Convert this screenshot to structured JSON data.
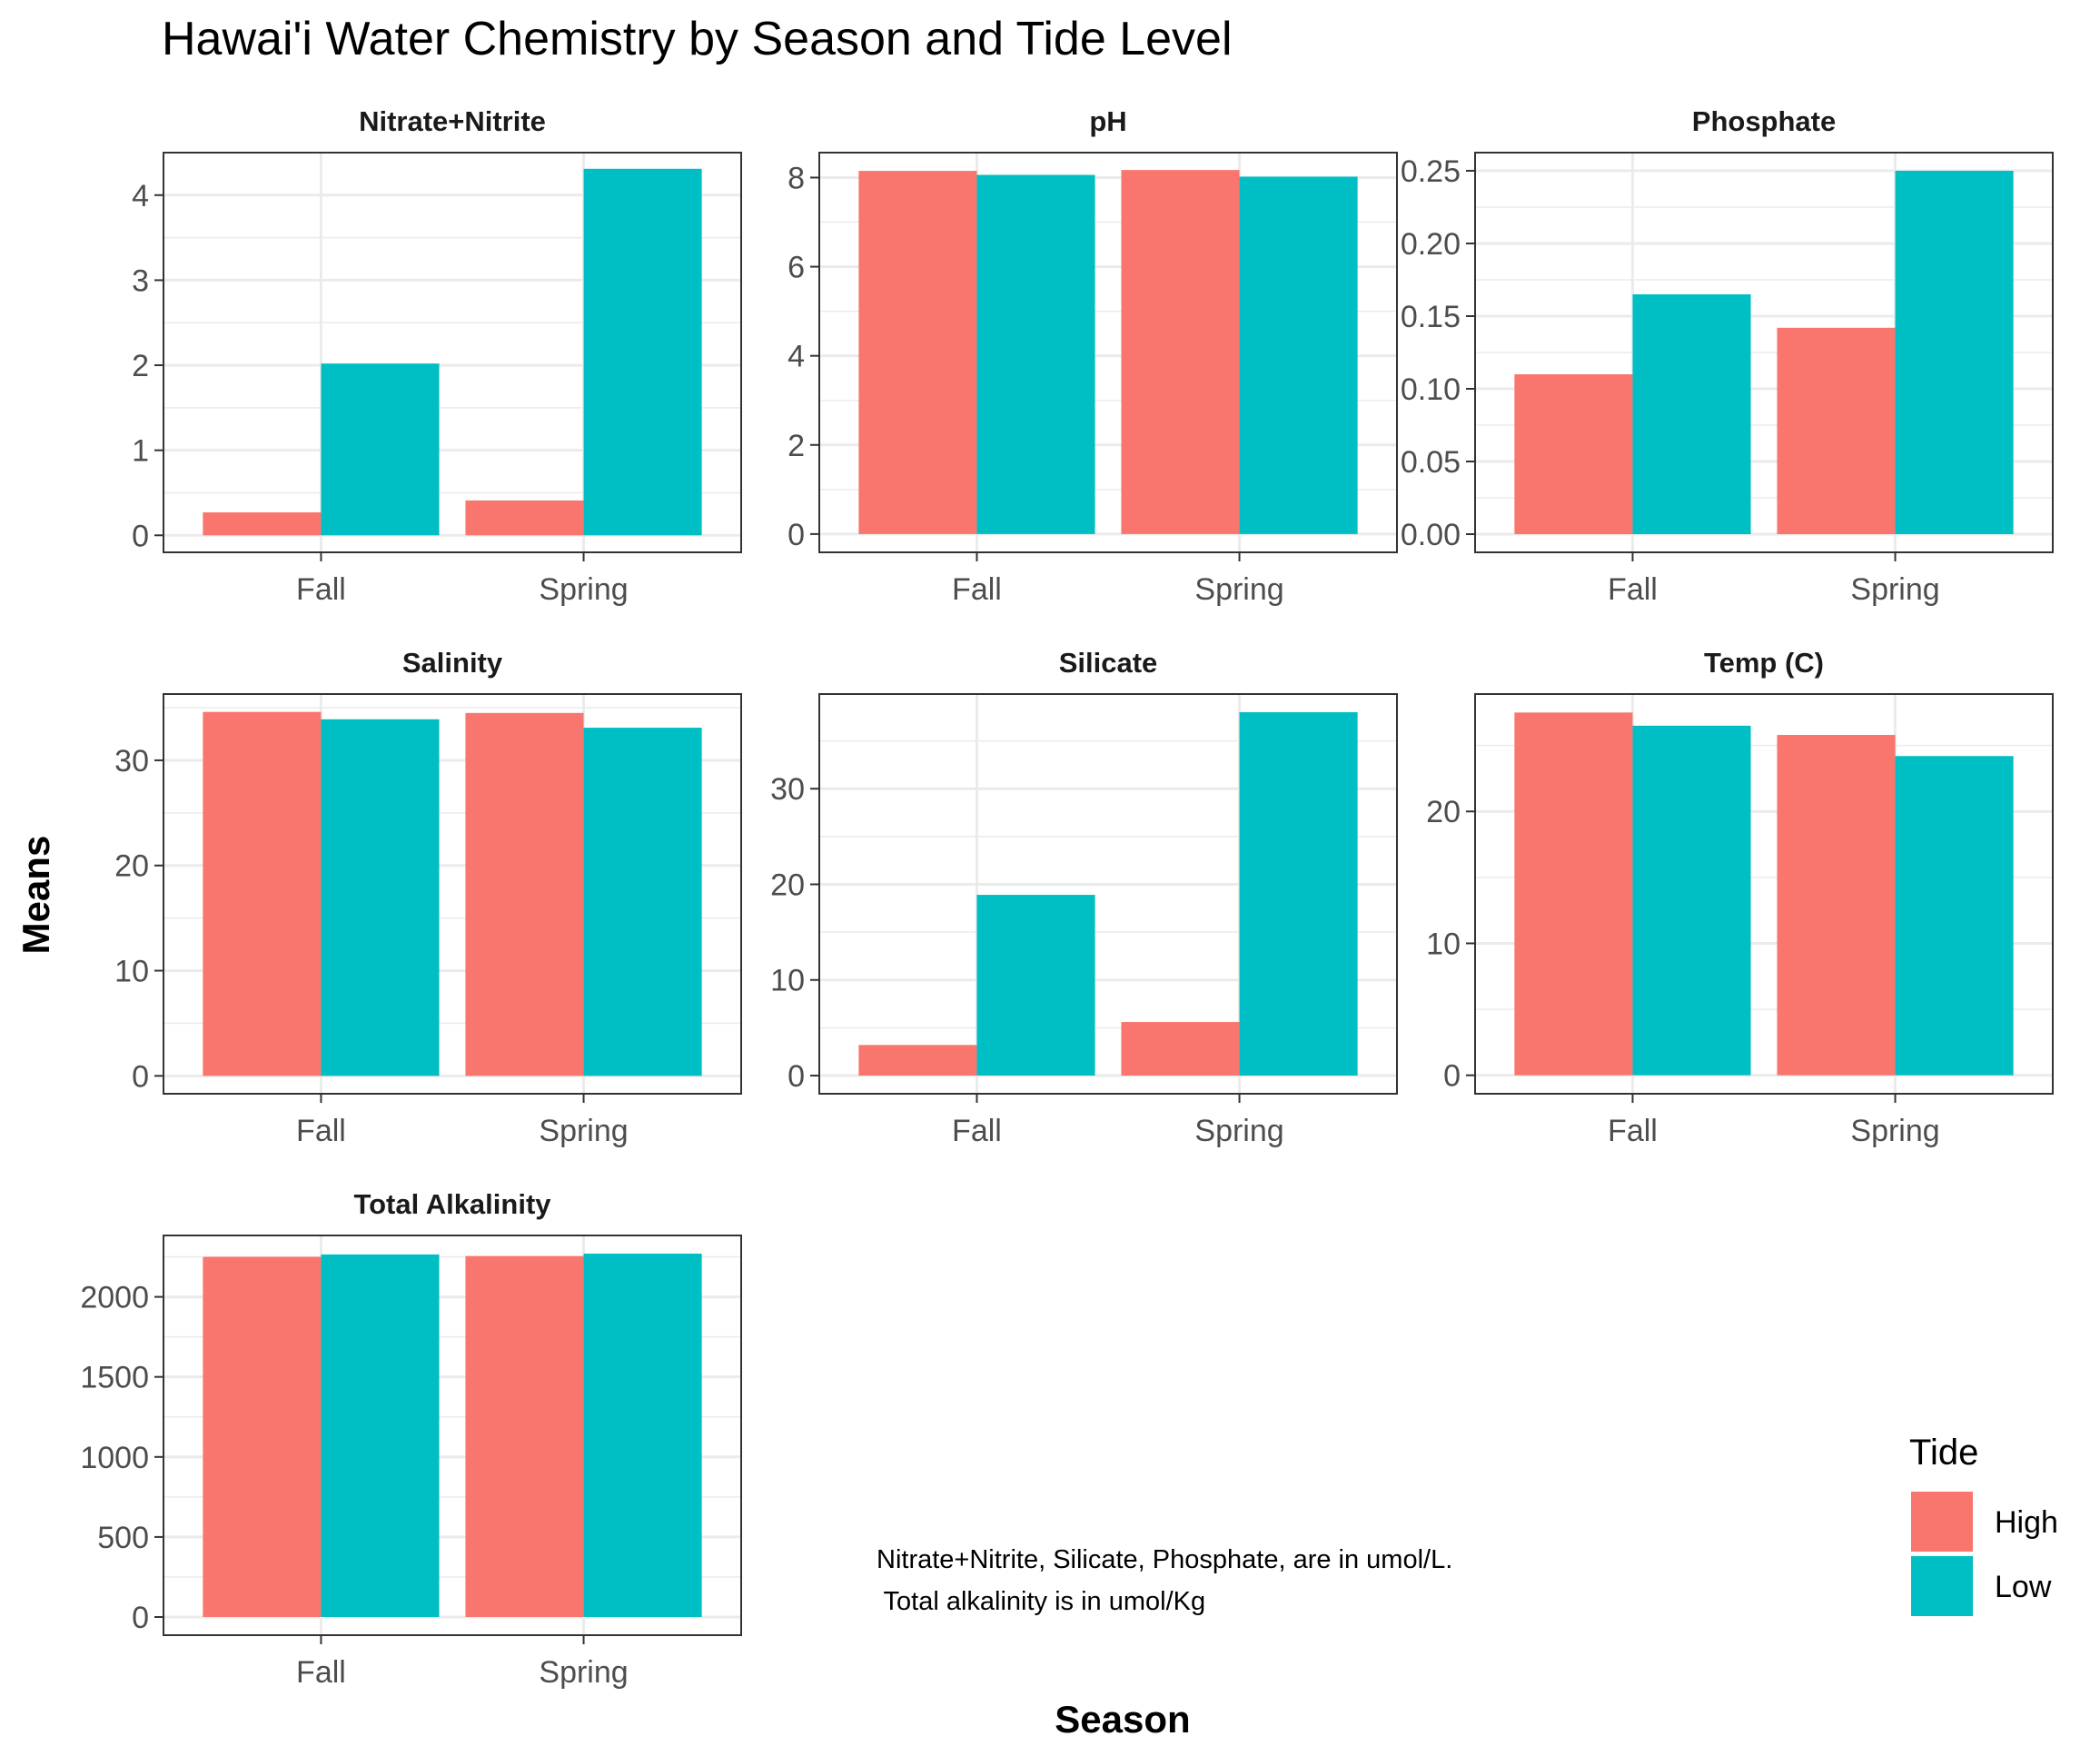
{
  "chart_data": {
    "type": "bar",
    "title": "Hawai'i Water Chemistry by Season and Tide Level",
    "xlabel": "Season",
    "ylabel": "Means",
    "categories": [
      "Fall",
      "Spring"
    ],
    "legend": {
      "title": "Tide",
      "placement": "bottom-right",
      "entries": [
        {
          "name": "High",
          "color": "#F8766D"
        },
        {
          "name": "Low",
          "color": "#00BFC4"
        }
      ]
    },
    "grid": true,
    "note_lines": [
      "Nitrate+Nitrite, Silicate, Phosphate, are in umol/L.",
      " Total alkalinity is in umol/Kg"
    ],
    "panels": [
      {
        "title": "Nitrate+Nitrite",
        "ylim": [
          -0.2,
          4.5
        ],
        "yticks": [
          0,
          1,
          2,
          3,
          4
        ],
        "ytick_labels": [
          "0",
          "1",
          "2",
          "3",
          "4"
        ],
        "series": [
          {
            "name": "High",
            "values": [
              0.27,
              0.41
            ]
          },
          {
            "name": "Low",
            "values": [
              2.02,
              4.31
            ]
          }
        ]
      },
      {
        "title": "pH",
        "ylim": [
          -0.41,
          8.56
        ],
        "yticks": [
          0,
          2,
          4,
          6,
          8
        ],
        "ytick_labels": [
          "0",
          "2",
          "4",
          "6",
          "8"
        ],
        "series": [
          {
            "name": "High",
            "values": [
              8.15,
              8.17
            ]
          },
          {
            "name": "Low",
            "values": [
              8.06,
              8.02
            ]
          }
        ]
      },
      {
        "title": "Phosphate",
        "ylim": [
          -0.0125,
          0.2625
        ],
        "yticks": [
          0.0,
          0.05,
          0.1,
          0.15,
          0.2,
          0.25
        ],
        "ytick_labels": [
          "0.00",
          "0.05",
          "0.10",
          "0.15",
          "0.20",
          "0.25"
        ],
        "series": [
          {
            "name": "High",
            "values": [
              0.11,
              0.142
            ]
          },
          {
            "name": "Low",
            "values": [
              0.165,
              0.25
            ]
          }
        ]
      },
      {
        "title": "Salinity",
        "ylim": [
          -1.7,
          36.3
        ],
        "yticks": [
          0,
          10,
          20,
          30
        ],
        "ytick_labels": [
          "0",
          "10",
          "20",
          "30"
        ],
        "series": [
          {
            "name": "High",
            "values": [
              34.6,
              34.5
            ]
          },
          {
            "name": "Low",
            "values": [
              33.9,
              33.1
            ]
          }
        ]
      },
      {
        "title": "Silicate",
        "ylim": [
          -1.9,
          39.9
        ],
        "yticks": [
          0,
          10,
          20,
          30
        ],
        "ytick_labels": [
          "0",
          "10",
          "20",
          "30"
        ],
        "series": [
          {
            "name": "High",
            "values": [
              3.2,
              5.6
            ]
          },
          {
            "name": "Low",
            "values": [
              18.9,
              38.0
            ]
          }
        ]
      },
      {
        "title": "Temp (C)",
        "ylim": [
          -1.4,
          28.9
        ],
        "yticks": [
          0,
          10,
          20
        ],
        "ytick_labels": [
          "0",
          "10",
          "20"
        ],
        "series": [
          {
            "name": "High",
            "values": [
              27.5,
              25.8
            ]
          },
          {
            "name": "Low",
            "values": [
              26.5,
              24.2
            ]
          }
        ]
      },
      {
        "title": "Total Alkalinity",
        "ylim": [
          -113.5,
          2383.5
        ],
        "yticks": [
          0,
          500,
          1000,
          1500,
          2000
        ],
        "ytick_labels": [
          "0",
          "500",
          "1000",
          "1500",
          "2000"
        ],
        "series": [
          {
            "name": "High",
            "values": [
              2250,
              2255
            ]
          },
          {
            "name": "Low",
            "values": [
              2265,
              2270
            ]
          }
        ]
      }
    ]
  }
}
